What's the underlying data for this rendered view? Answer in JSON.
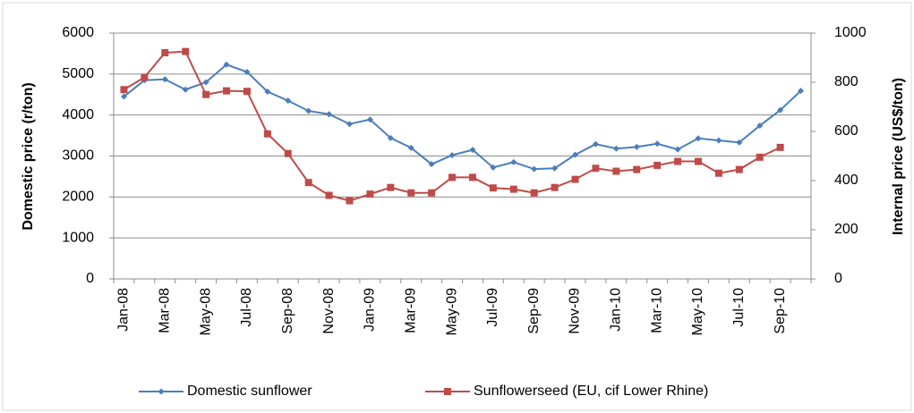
{
  "chart_data": {
    "type": "line",
    "categories": [
      "Jan-08",
      null,
      "Mar-08",
      null,
      "May-08",
      null,
      "Jul-08",
      null,
      "Sep-08",
      null,
      "Nov-08",
      null,
      "Jan-09",
      null,
      "Mar-09",
      null,
      "May-09",
      null,
      "Jul-09",
      null,
      "Sep-09",
      null,
      "Nov-09",
      null,
      "Jan-10",
      null,
      "Mar-10",
      null,
      "May-10",
      null,
      "Jul-10",
      null,
      "Sep-10",
      null
    ],
    "y_label": "Domestic price (r/ton)",
    "y2_label": "Internal price (US$/ton)",
    "ylim": [
      0,
      6000
    ],
    "yticks": [
      0,
      1000,
      2000,
      3000,
      4000,
      5000,
      6000
    ],
    "y2lim": [
      0,
      1000
    ],
    "y2ticks": [
      0,
      200,
      400,
      600,
      800,
      1000
    ],
    "grid": true,
    "legend": "bottom",
    "series": [
      {
        "name": "Domestic sunflower",
        "color": "#4a7ebb",
        "marker": "diamond",
        "values": [
          4450,
          4850,
          4870,
          4620,
          4800,
          5230,
          5050,
          4570,
          4350,
          4100,
          4020,
          3780,
          3890,
          3440,
          3200,
          2800,
          3020,
          3150,
          2720,
          2850,
          2680,
          2700,
          3030,
          3290,
          3180,
          3220,
          3300,
          3160,
          3430,
          3380,
          3330,
          3740,
          4120,
          4590
        ]
      },
      {
        "name": "Sunflowerseed (EU, cif Lower Rhine)",
        "color": "#be4b48",
        "marker": "square",
        "axis": "y2",
        "values": [
          770,
          820,
          920,
          925,
          750,
          765,
          763,
          590,
          510,
          392,
          340,
          318,
          345,
          372,
          350,
          350,
          413,
          413,
          370,
          365,
          350,
          372,
          405,
          450,
          438,
          445,
          462,
          478,
          478,
          430,
          445,
          495,
          535,
          null
        ]
      }
    ]
  }
}
